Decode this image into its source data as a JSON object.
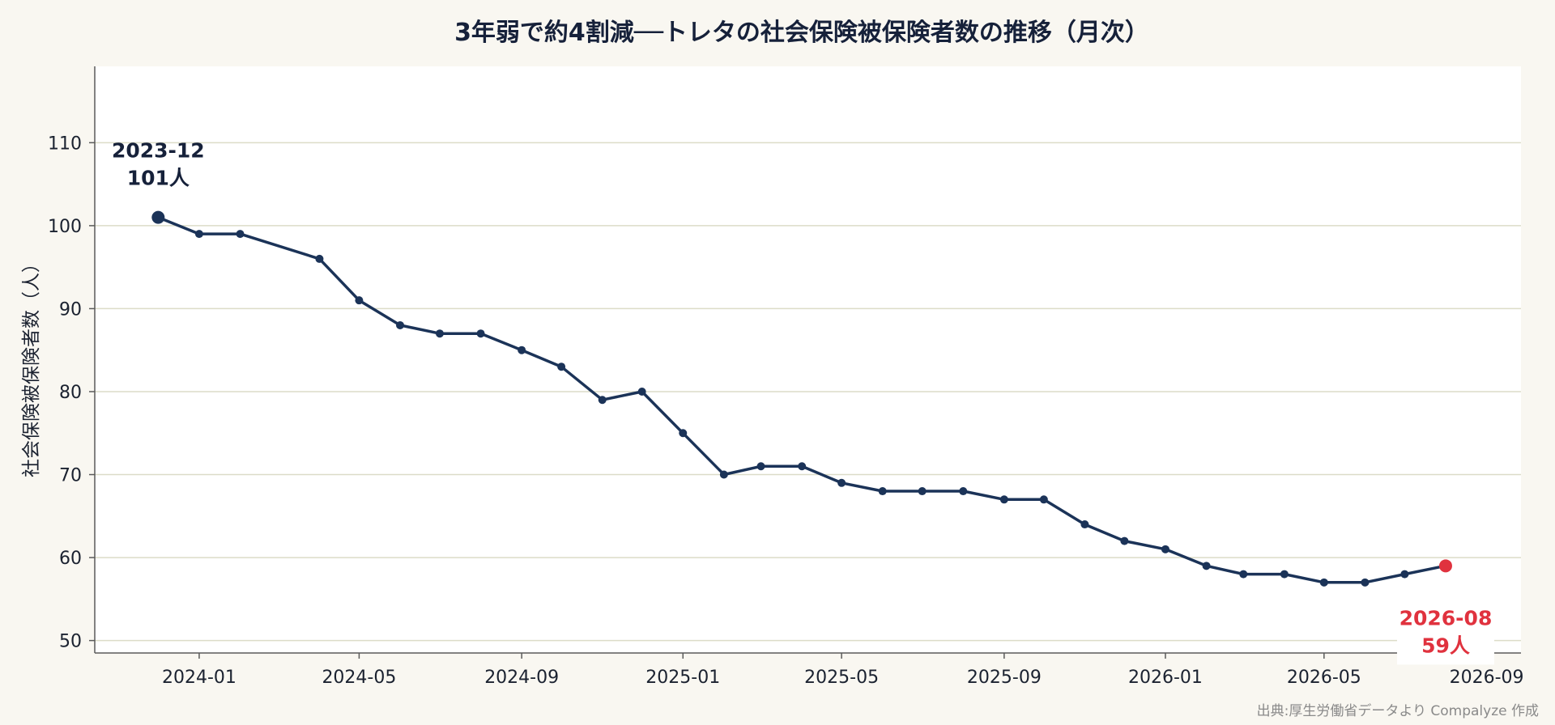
{
  "chart_data": {
    "type": "line",
    "title": "3年弱で約4割減──トレタの社会保険被保険者数の推移（月次）",
    "ylabel": "社会保険被保険者数（人）",
    "xlabel": "",
    "ylim": [
      48.5,
      119.2
    ],
    "xlim": [
      "2023-10-14",
      "2026-09-27"
    ],
    "grid": "horizontal",
    "yticks": [
      50,
      60,
      70,
      80,
      90,
      100,
      110
    ],
    "xticks": [
      "2024-01",
      "2024-05",
      "2024-09",
      "2025-01",
      "2025-05",
      "2025-09",
      "2026-01",
      "2026-05",
      "2026-09"
    ],
    "series": [
      {
        "color": "#1b3358",
        "points": [
          {
            "x": "2023-12",
            "y": 101
          },
          {
            "x": "2024-01",
            "y": 99
          },
          {
            "x": "2024-02",
            "y": 99
          },
          {
            "x": "2024-04",
            "y": 96
          },
          {
            "x": "2024-05",
            "y": 91
          },
          {
            "x": "2024-06",
            "y": 88
          },
          {
            "x": "2024-07",
            "y": 87
          },
          {
            "x": "2024-08",
            "y": 87
          },
          {
            "x": "2024-09",
            "y": 85
          },
          {
            "x": "2024-10",
            "y": 83
          },
          {
            "x": "2024-11",
            "y": 79
          },
          {
            "x": "2024-12",
            "y": 80
          },
          {
            "x": "2025-01",
            "y": 75
          },
          {
            "x": "2025-02",
            "y": 70
          },
          {
            "x": "2025-03",
            "y": 71
          },
          {
            "x": "2025-04",
            "y": 71
          },
          {
            "x": "2025-05",
            "y": 69
          },
          {
            "x": "2025-06",
            "y": 68
          },
          {
            "x": "2025-07",
            "y": 68
          },
          {
            "x": "2025-08",
            "y": 68
          },
          {
            "x": "2025-09",
            "y": 67
          },
          {
            "x": "2025-10",
            "y": 67
          },
          {
            "x": "2025-11",
            "y": 64
          },
          {
            "x": "2025-12",
            "y": 62
          },
          {
            "x": "2026-01",
            "y": 61
          },
          {
            "x": "2026-02",
            "y": 59
          },
          {
            "x": "2026-03",
            "y": 58
          },
          {
            "x": "2026-04",
            "y": 58
          },
          {
            "x": "2026-05",
            "y": 57
          },
          {
            "x": "2026-06",
            "y": 57
          },
          {
            "x": "2026-07",
            "y": 58
          },
          {
            "x": "2026-08",
            "y": 59
          }
        ]
      }
    ],
    "annotations": [
      {
        "x": "2023-12",
        "y": 101,
        "line1": "2023-12",
        "line2": "101人",
        "color": "#16213a",
        "placement": "above"
      },
      {
        "x": "2026-08",
        "y": 59,
        "line1": "2026-08",
        "line2": "59人",
        "color": "#e0323e",
        "placement": "below"
      }
    ],
    "colors": {
      "line": "#1b3358",
      "start_marker": "#1b3358",
      "end_marker": "#e0323e",
      "grid": "#dcdcc8",
      "plot_bg": "#ffffff",
      "page_bg": "#f9f7f1"
    }
  },
  "source_note": "出典:厚生労働省データより Compalyze 作成"
}
